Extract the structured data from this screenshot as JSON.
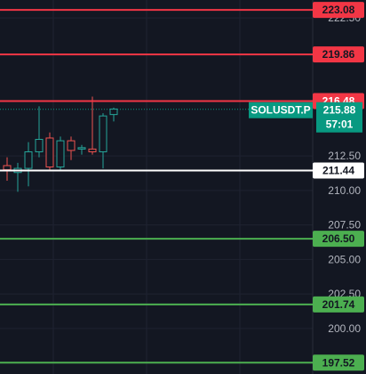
{
  "chart_data": {
    "type": "candlestick",
    "symbol": "SOLUSDT.P",
    "price": "215.88",
    "countdown": "57:01",
    "ylim": [
      196.7,
      223.8
    ],
    "y_ticks": [
      {
        "value": 222.5,
        "label": "222.50"
      },
      {
        "value": 212.5,
        "label": "212.50"
      },
      {
        "value": 210.0,
        "label": "210.00"
      },
      {
        "value": 207.5,
        "label": "207.50"
      },
      {
        "value": 205.0,
        "label": "205.00"
      },
      {
        "value": 202.5,
        "label": "202.50"
      },
      {
        "value": 200.0,
        "label": "200.00"
      }
    ],
    "levels": [
      {
        "value": 223.08,
        "label": "223.08",
        "color": "#f23645",
        "text_color": "#131722"
      },
      {
        "value": 219.86,
        "label": "219.86",
        "color": "#f23645",
        "text_color": "#131722"
      },
      {
        "value": 216.48,
        "label": "216.48",
        "color": "#f23645",
        "text_color": "#ffffff"
      },
      {
        "value": 211.44,
        "label": "211.44",
        "color": "#ffffff",
        "text_color": "#131722"
      },
      {
        "value": 206.5,
        "label": "206.50",
        "color": "#4caf50",
        "text_color": "#131722"
      },
      {
        "value": 201.74,
        "label": "201.74",
        "color": "#4caf50",
        "text_color": "#131722"
      },
      {
        "value": 197.52,
        "label": "197.52",
        "color": "#4caf50",
        "text_color": "#131722"
      }
    ],
    "candles": [
      {
        "o": 211.8,
        "h": 212.4,
        "l": 210.7,
        "c": 211.5
      },
      {
        "o": 211.3,
        "h": 212.0,
        "l": 209.9,
        "c": 211.6
      },
      {
        "o": 211.6,
        "h": 213.5,
        "l": 210.3,
        "c": 212.8
      },
      {
        "o": 212.8,
        "h": 216.1,
        "l": 212.4,
        "c": 213.7
      },
      {
        "o": 213.8,
        "h": 214.2,
        "l": 211.5,
        "c": 211.7
      },
      {
        "o": 211.7,
        "h": 213.9,
        "l": 211.5,
        "c": 213.6
      },
      {
        "o": 213.6,
        "h": 213.9,
        "l": 212.2,
        "c": 212.9
      },
      {
        "o": 213.0,
        "h": 213.3,
        "l": 212.6,
        "c": 213.1
      },
      {
        "o": 213.0,
        "h": 216.8,
        "l": 212.6,
        "c": 212.8
      },
      {
        "o": 212.8,
        "h": 215.6,
        "l": 211.6,
        "c": 215.4
      },
      {
        "o": 215.5,
        "h": 216.0,
        "l": 215.0,
        "c": 215.9
      }
    ],
    "up_color": "#26a69a",
    "down_color": "#ef5350",
    "price_color": "#089981",
    "grid": true
  }
}
